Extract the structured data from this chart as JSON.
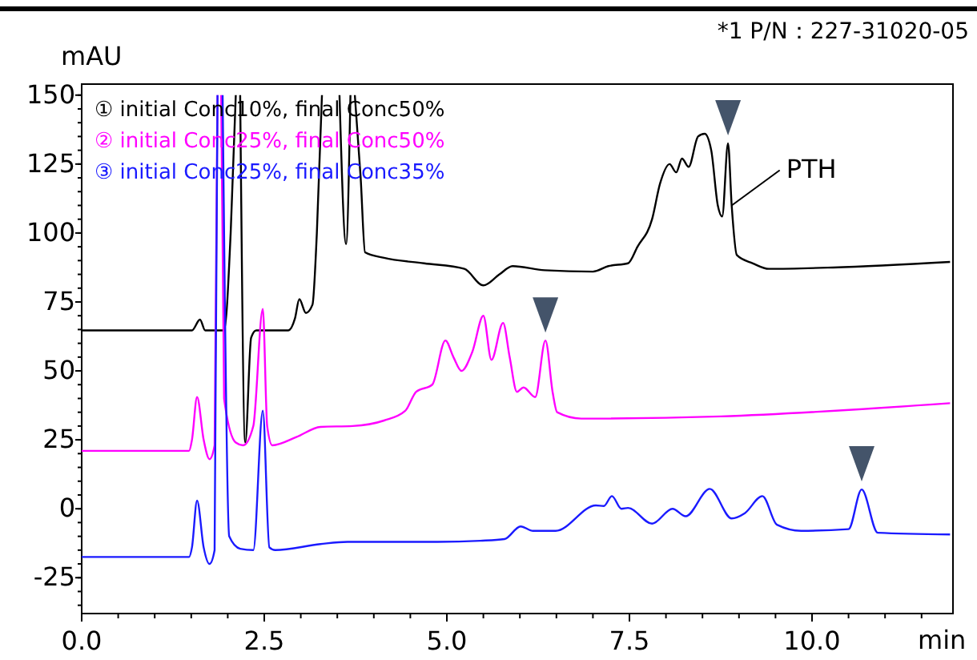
{
  "chart_data": {
    "type": "line",
    "xlabel": "min",
    "ylabel": "mAU",
    "xlim": [
      0,
      11.93
    ],
    "ylim": [
      -38,
      154
    ],
    "xticks": [
      {
        "value": 0,
        "label": "0.0"
      },
      {
        "value": 2.5,
        "label": "2.5"
      },
      {
        "value": 5,
        "label": "5.0"
      },
      {
        "value": 7.5,
        "label": "7.5"
      },
      {
        "value": 10,
        "label": "10.0"
      }
    ],
    "yticks": [
      -25,
      0,
      25,
      50,
      75,
      100,
      125,
      150
    ],
    "grid": false,
    "legend": "top left",
    "marker": "none",
    "line_style": "solid",
    "annotations": [
      "*1 P/N：227-31020-05",
      {
        "text": "PTH",
        "x": 8.9,
        "y": 110
      }
    ],
    "series": [
      {
        "name": "① initial Conc10%, final Conc50%",
        "color": "#000000",
        "x": [
          0,
          1.51,
          1.62,
          1.69,
          1.95,
          2.04,
          2.11,
          2.14,
          2.17,
          2.24,
          2.32,
          2.39,
          2.83,
          2.92,
          2.98,
          3.07,
          3.16,
          3.22,
          3.29,
          3.41,
          3.53,
          3.62,
          3.68,
          3.71,
          3.74,
          3.82,
          3.88,
          4.14,
          4.69,
          5.24,
          5.5,
          5.72,
          5.9,
          6.34,
          7.0,
          7.21,
          7.48,
          7.61,
          7.81,
          7.92,
          8.05,
          8.14,
          8.22,
          8.31,
          8.44,
          8.53,
          8.62,
          8.71,
          8.77,
          8.85,
          8.9,
          8.97,
          9.19,
          9.41,
          10.29,
          11.89
        ],
        "values": [
          64.7,
          64.7,
          68.6,
          64.7,
          64.7,
          100,
          150,
          null,
          150,
          24,
          62,
          64.7,
          64.7,
          69,
          76,
          71,
          74,
          100,
          150,
          null,
          150,
          96,
          150,
          null,
          150,
          120,
          93,
          91,
          89,
          87,
          81,
          85,
          88,
          86.5,
          86,
          88,
          89,
          95,
          105,
          118,
          125,
          122,
          127,
          124,
          135,
          136,
          130,
          110,
          106,
          132.5,
          110,
          92,
          89,
          87,
          87.5,
          89.5
        ]
      },
      {
        "name": "② initial Conc25%, final Conc50%",
        "color": "#ff00ff",
        "x": [
          0,
          1.47,
          1.51,
          1.58,
          1.67,
          1.75,
          1.82,
          1.86,
          1.88,
          1.91,
          1.95,
          2.11,
          2.21,
          2.35,
          2.48,
          2.54,
          2.61,
          2.94,
          3.27,
          3.71,
          4.14,
          4.43,
          4.58,
          4.8,
          4.98,
          5.09,
          5.2,
          5.35,
          5.5,
          5.61,
          5.77,
          5.86,
          5.96,
          6.05,
          6.21,
          6.35,
          6.45,
          6.51,
          6.84,
          8.75,
          11.89
        ],
        "values": [
          21,
          21,
          25,
          40.5,
          25,
          18,
          23,
          150,
          null,
          150,
          40,
          24,
          23,
          30,
          72.5,
          30,
          23,
          26,
          29.7,
          30,
          32,
          35.5,
          42.4,
          45,
          61,
          55,
          50,
          57,
          70,
          54,
          67.4,
          55,
          42.4,
          44,
          40.5,
          61,
          42,
          35,
          32.7,
          33.5,
          38.3
        ]
      },
      {
        "name": "③ initial Conc25%, final Conc35%",
        "color": "#1a1aff",
        "x": [
          0,
          1.47,
          1.51,
          1.58,
          1.67,
          1.75,
          1.82,
          1.86,
          1.9,
          1.93,
          2.02,
          2.17,
          2.35,
          2.48,
          2.57,
          2.65,
          3.27,
          3.64,
          4.87,
          5.46,
          5.79,
          6.01,
          6.18,
          6.49,
          7.04,
          7.15,
          7.26,
          7.39,
          7.48,
          7.81,
          8.09,
          8.27,
          8.6,
          8.9,
          9.08,
          9.32,
          9.52,
          9.85,
          10.5,
          10.68,
          10.9,
          11.89
        ],
        "values": [
          -17.5,
          -17.5,
          -14,
          3,
          -14,
          -20,
          -15,
          150,
          null,
          150,
          -10,
          -14.5,
          -15,
          35.6,
          -14,
          -15,
          -12.8,
          -12,
          -12,
          -11.6,
          -11,
          -6.4,
          -8,
          -8,
          1.2,
          1,
          4.6,
          0,
          0.3,
          -5.4,
          0,
          -2.7,
          7.2,
          -3.5,
          -1.6,
          4.6,
          -5.8,
          -8,
          -7.4,
          7,
          -8.7,
          -9.3
        ]
      }
    ]
  }
}
